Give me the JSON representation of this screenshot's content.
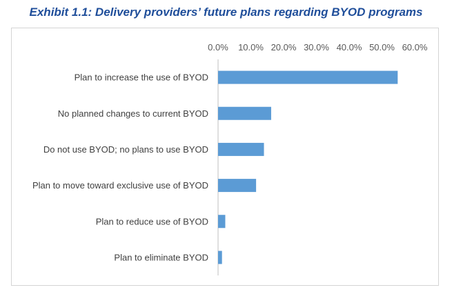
{
  "chart_data": {
    "type": "bar",
    "orientation": "horizontal",
    "title": "Exhibit 1.1: Delivery providers’ future plans regarding BYOD programs",
    "categories": [
      "Plan to increase the use of BYOD",
      "No planned changes to current BYOD",
      "Do not use BYOD; no plans to use BYOD",
      "Plan to move toward exclusive use of BYOD",
      "Plan to reduce use of BYOD",
      "Plan to eliminate BYOD"
    ],
    "values": [
      54.8,
      16.2,
      14.0,
      11.6,
      2.2,
      1.2
    ],
    "xlim": [
      0,
      60
    ],
    "ticks": [
      "0.0%",
      "10.0%",
      "20.0%",
      "30.0%",
      "40.0%",
      "50.0%",
      "60.0%"
    ],
    "tick_values": [
      0,
      10,
      20,
      30,
      40,
      50,
      60
    ],
    "axis_position": "top",
    "grid": false,
    "bar_color": "#5b9bd5"
  }
}
